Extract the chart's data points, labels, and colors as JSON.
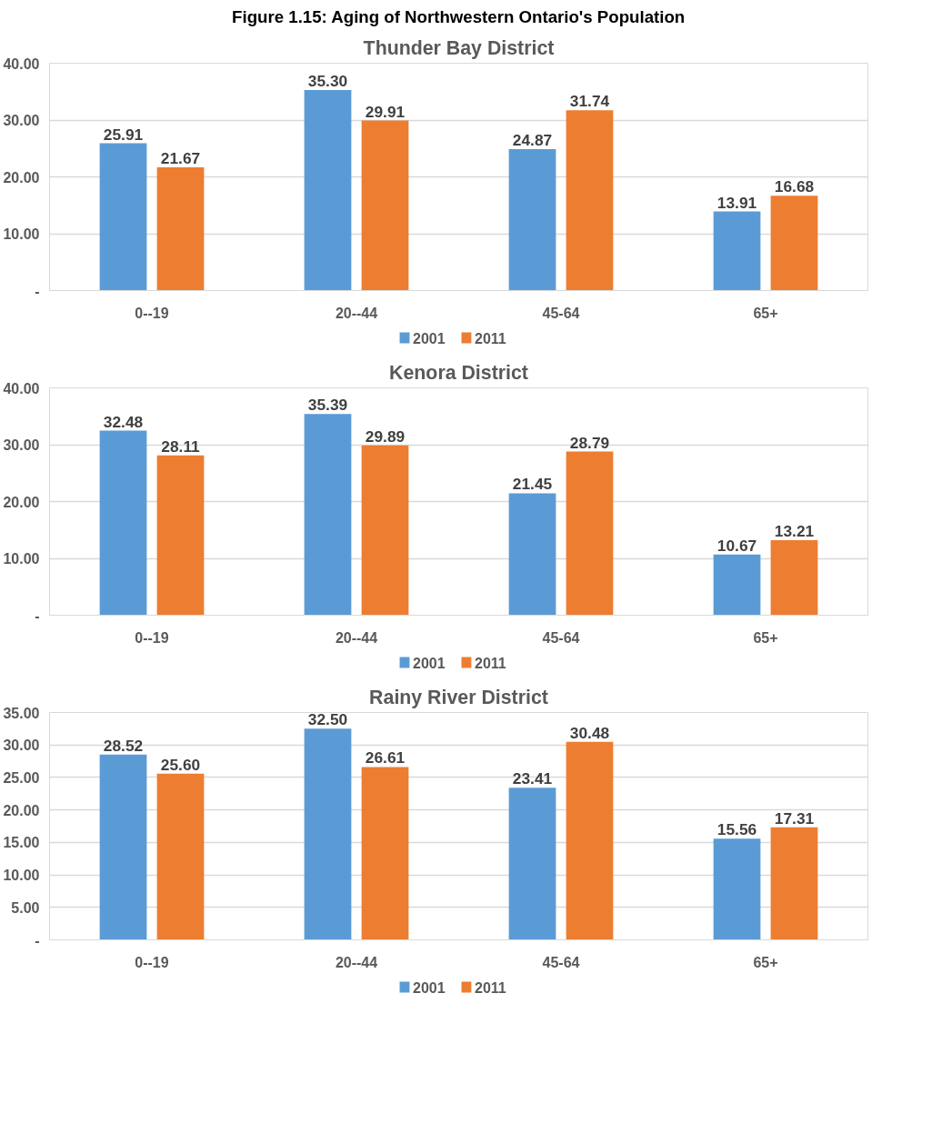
{
  "chart_data": [
    {
      "type": "bar",
      "title": "Thunder Bay District",
      "annotations": [
        "Figure 1.15: Aging of Northwestern Ontario's Population"
      ],
      "categories": [
        "0--19",
        "20--44",
        "45-64",
        "65+"
      ],
      "series": [
        {
          "name": "2001",
          "color": "#5b9bd5",
          "values": [
            25.91,
            35.3,
            24.87,
            13.91
          ],
          "value_labels": [
            "25.91",
            "35.30",
            "24.87",
            "13.91"
          ]
        },
        {
          "name": "2011",
          "color": "#ed7d31",
          "values": [
            21.67,
            29.91,
            31.74,
            16.68
          ],
          "value_labels": [
            "21.67",
            "29.91",
            "31.74",
            "16.68"
          ]
        }
      ],
      "ylim": [
        0,
        40
      ],
      "yticks": [
        {
          "value": 0,
          "label": "-"
        },
        {
          "value": 10,
          "label": "10.00"
        },
        {
          "value": 20,
          "label": "20.00"
        },
        {
          "value": 30,
          "label": "30.00"
        },
        {
          "value": 40,
          "label": "40.00"
        }
      ],
      "grid": "y",
      "legend": "bottom"
    },
    {
      "type": "bar",
      "title": "Kenora District",
      "categories": [
        "0--19",
        "20--44",
        "45-64",
        "65+"
      ],
      "series": [
        {
          "name": "2001",
          "color": "#5b9bd5",
          "values": [
            32.48,
            35.39,
            21.45,
            10.67
          ],
          "value_labels": [
            "32.48",
            "35.39",
            "21.45",
            "10.67"
          ]
        },
        {
          "name": "2011",
          "color": "#ed7d31",
          "values": [
            28.11,
            29.89,
            28.79,
            13.21
          ],
          "value_labels": [
            "28.11",
            "29.89",
            "28.79",
            "13.21"
          ]
        }
      ],
      "ylim": [
        0,
        40
      ],
      "yticks": [
        {
          "value": 0,
          "label": "-"
        },
        {
          "value": 10,
          "label": "10.00"
        },
        {
          "value": 20,
          "label": "20.00"
        },
        {
          "value": 30,
          "label": "30.00"
        },
        {
          "value": 40,
          "label": "40.00"
        }
      ],
      "grid": "y",
      "legend": "bottom"
    },
    {
      "type": "bar",
      "title": "Rainy River District",
      "categories": [
        "0--19",
        "20--44",
        "45-64",
        "65+"
      ],
      "series": [
        {
          "name": "2001",
          "color": "#5b9bd5",
          "values": [
            28.52,
            32.5,
            23.41,
            15.56
          ],
          "value_labels": [
            "28.52",
            "32.50",
            "23.41",
            "15.56"
          ]
        },
        {
          "name": "2011",
          "color": "#ed7d31",
          "values": [
            25.6,
            26.61,
            30.48,
            17.31
          ],
          "value_labels": [
            "25.60",
            "26.61",
            "30.48",
            "17.31"
          ]
        }
      ],
      "ylim": [
        0,
        35
      ],
      "yticks": [
        {
          "value": 0,
          "label": "-"
        },
        {
          "value": 5,
          "label": "5.00"
        },
        {
          "value": 10,
          "label": "10.00"
        },
        {
          "value": 15,
          "label": "15.00"
        },
        {
          "value": 20,
          "label": "20.00"
        },
        {
          "value": 25,
          "label": "25.00"
        },
        {
          "value": 30,
          "label": "30.00"
        },
        {
          "value": 35,
          "label": "35.00"
        }
      ],
      "grid": "y",
      "legend": "bottom"
    }
  ]
}
